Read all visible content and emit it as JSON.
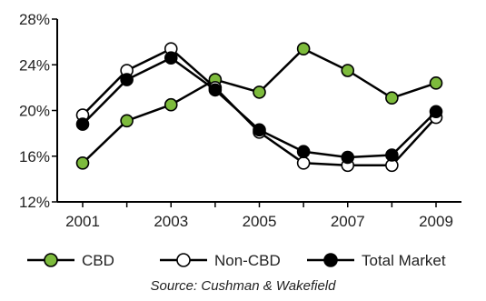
{
  "chart_data": {
    "type": "line",
    "x": [
      2001,
      2002,
      2003,
      2004,
      2005,
      2006,
      2007,
      2008,
      2009
    ],
    "x_ticks": [
      "2001",
      "2003",
      "2005",
      "2007",
      "2009"
    ],
    "xlim": [
      2001,
      2009
    ],
    "ylim": [
      12,
      28
    ],
    "y_ticks": [
      "12%",
      "16%",
      "20%",
      "24%",
      "28%"
    ],
    "y_tick_values": [
      12,
      16,
      20,
      24,
      28
    ],
    "grid": false,
    "legend_position": "bottom",
    "series": [
      {
        "name": "CBD",
        "color": "#7dbb3c",
        "marker": "filled-green-circle",
        "values": [
          15.4,
          19.1,
          20.5,
          22.7,
          21.6,
          25.4,
          23.5,
          21.1,
          22.4
        ]
      },
      {
        "name": "Non-CBD",
        "color": "#ffffff",
        "marker": "hollow-circle",
        "values": [
          19.6,
          23.5,
          25.4,
          22.0,
          18.1,
          15.4,
          15.2,
          15.2,
          19.4
        ]
      },
      {
        "name": "Total Market",
        "color": "#000000",
        "marker": "filled-black-circle",
        "values": [
          18.8,
          22.7,
          24.6,
          21.8,
          18.3,
          16.4,
          15.9,
          16.1,
          19.9
        ]
      }
    ]
  },
  "source": "Source: Cushman & Wakefield"
}
